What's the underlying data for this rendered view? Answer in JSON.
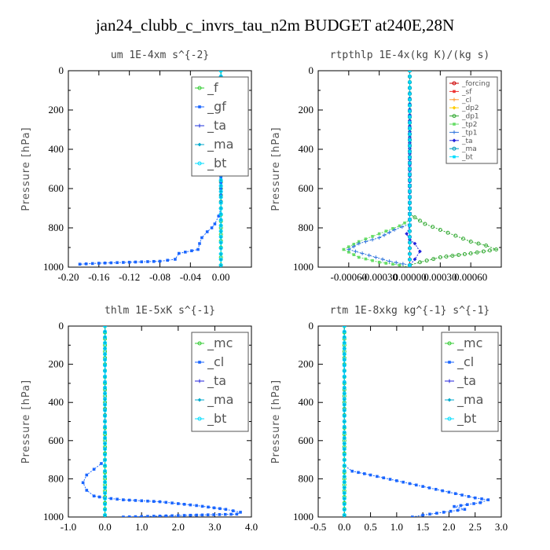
{
  "figure": {
    "title": "jan24_clubb_c_invrs_tau_n2m  BUDGET at240E,28N",
    "ylabel": "Pressure [hPa]"
  },
  "chart_data": [
    {
      "type": "line",
      "title": "um  1E-4xm s^{-2}",
      "ylabel": "Pressure [hPa]",
      "xlim": [
        -0.2,
        0.04
      ],
      "ylim": [
        1000,
        0
      ],
      "xticks": [
        -0.2,
        -0.16,
        -0.12,
        -0.08,
        -0.04,
        0.0
      ],
      "xtick_labels": [
        "-0.20",
        "-0.16",
        "-0.12",
        "-0.08",
        "-0.04",
        "0.00"
      ],
      "yticks": [
        0,
        200,
        400,
        600,
        800,
        1000
      ],
      "legend": {
        "position": "top-right",
        "size": "large"
      },
      "series": [
        {
          "name": "_f",
          "color": "#33cc33",
          "x": [
            0,
            0,
            0,
            0,
            0,
            0,
            0,
            0,
            0,
            0,
            0,
            0
          ],
          "y": [
            0,
            100,
            200,
            300,
            400,
            500,
            600,
            700,
            800,
            900,
            950,
            990
          ]
        },
        {
          "name": "_gf",
          "color": "#1a66ff",
          "x": [
            0,
            0,
            0,
            0,
            0,
            -0.003,
            -0.008,
            -0.012,
            -0.018,
            -0.025,
            -0.028,
            -0.03,
            -0.055,
            -0.06,
            -0.08,
            -0.12,
            -0.16,
            -0.185
          ],
          "y": [
            0,
            200,
            400,
            600,
            700,
            740,
            780,
            800,
            820,
            850,
            880,
            910,
            930,
            960,
            970,
            975,
            980,
            985
          ]
        },
        {
          "name": "_ta",
          "color": "#2233dd",
          "x": [
            0,
            0,
            0
          ],
          "y": [
            0,
            500,
            990
          ]
        },
        {
          "name": "_ma",
          "color": "#00aacc",
          "x": [
            0,
            0,
            0
          ],
          "y": [
            0,
            500,
            990
          ]
        },
        {
          "name": "_bt",
          "color": "#00ddff",
          "x": [
            0,
            0,
            0
          ],
          "y": [
            0,
            500,
            990
          ]
        }
      ]
    },
    {
      "type": "line",
      "title": "rtpthlp  1E-4x(kg K)/(kg s)",
      "ylabel": "Pressure [hPa]",
      "xlim": [
        -0.0009,
        0.0009
      ],
      "ylim": [
        1000,
        0
      ],
      "xticks": [
        -0.0006,
        -0.0003,
        0.0,
        0.0003,
        0.0006
      ],
      "xtick_labels": [
        "-0.00060",
        "-0.00030",
        "0.00000",
        "0.00030",
        "0.00060"
      ],
      "yticks": [
        0,
        200,
        400,
        600,
        800,
        1000
      ],
      "legend": {
        "position": "top-right",
        "size": "small"
      },
      "series": [
        {
          "name": "_forcing",
          "color": "#cc0000",
          "x": [
            0,
            0,
            0
          ],
          "y": [
            0,
            500,
            990
          ]
        },
        {
          "name": "_sf",
          "color": "#ee3333",
          "x": [
            0,
            0,
            0
          ],
          "y": [
            0,
            500,
            990
          ]
        },
        {
          "name": "_cl",
          "color": "#ff9933",
          "x": [
            0,
            0,
            0
          ],
          "y": [
            0,
            500,
            990
          ]
        },
        {
          "name": "_dp2",
          "color": "#ffcc00",
          "x": [
            0,
            0,
            0
          ],
          "y": [
            0,
            500,
            990
          ]
        },
        {
          "name": "_dp1",
          "color": "#33aa33",
          "x": [
            0,
            0,
            0,
            0.00015,
            0.0003,
            0.00045,
            0.0006,
            0.00075,
            0.00085,
            0.0006,
            0.0003,
            0.0001,
            0,
            0
          ],
          "y": [
            0,
            500,
            730,
            780,
            810,
            840,
            870,
            890,
            910,
            930,
            950,
            975,
            990,
            1000
          ]
        },
        {
          "name": "_tp2",
          "color": "#66dd66",
          "x": [
            0,
            0,
            -0.0001,
            -0.0003,
            -0.0005,
            -0.00065,
            -0.0005,
            -0.0003,
            -0.0001,
            0
          ],
          "y": [
            0,
            760,
            790,
            830,
            870,
            910,
            950,
            975,
            990,
            1000
          ]
        },
        {
          "name": "_tp1",
          "color": "#3377dd",
          "x": [
            0,
            0,
            -0.00015,
            -0.0003,
            -0.0005,
            -0.0006,
            -0.0004,
            -0.0002,
            0,
            0
          ],
          "y": [
            0,
            780,
            810,
            850,
            880,
            910,
            940,
            970,
            990,
            1000
          ]
        },
        {
          "name": "_ta",
          "color": "#2222dd",
          "x": [
            0,
            0,
            -3e-05,
            0,
            5e-05,
            0.0001,
            5e-05,
            0
          ],
          "y": [
            0,
            790,
            830,
            860,
            880,
            920,
            960,
            990
          ]
        },
        {
          "name": "_ma",
          "color": "#0099bb",
          "x": [
            0,
            0,
            0
          ],
          "y": [
            0,
            500,
            990
          ]
        },
        {
          "name": "_bt",
          "color": "#00ddff",
          "x": [
            0,
            0,
            0
          ],
          "y": [
            0,
            500,
            990
          ]
        }
      ]
    },
    {
      "type": "line",
      "title": "thlm  1E-5xK s^{-1}",
      "ylabel": "Pressure [hPa]",
      "xlim": [
        -1.0,
        4.0
      ],
      "ylim": [
        1000,
        0
      ],
      "xticks": [
        -1.0,
        0.0,
        1.0,
        2.0,
        3.0,
        4.0
      ],
      "xtick_labels": [
        "-1.0",
        "0.0",
        "1.0",
        "2.0",
        "3.0",
        "4.0"
      ],
      "yticks": [
        0,
        200,
        400,
        600,
        800,
        1000
      ],
      "legend": {
        "position": "top-right",
        "size": "large"
      },
      "series": [
        {
          "name": "_mc",
          "color": "#33cc33",
          "x": [
            0,
            0,
            0,
            0,
            0,
            0
          ],
          "y": [
            0,
            200,
            400,
            600,
            800,
            990
          ]
        },
        {
          "name": "_cl",
          "color": "#1a66ff",
          "x": [
            0,
            0,
            -0.1,
            -0.3,
            -0.5,
            -0.6,
            -0.5,
            -0.3,
            0,
            0.5,
            1.5,
            2.5,
            3.3,
            3.7,
            3.6,
            2.5,
            1.5,
            0.5
          ],
          "y": [
            0,
            700,
            720,
            750,
            780,
            820,
            860,
            890,
            900,
            910,
            920,
            940,
            960,
            975,
            985,
            990,
            995,
            1000
          ]
        },
        {
          "name": "_ta",
          "color": "#2222dd",
          "x": [
            0,
            0,
            0
          ],
          "y": [
            0,
            500,
            990
          ]
        },
        {
          "name": "_ma",
          "color": "#00aacc",
          "x": [
            0,
            0,
            0
          ],
          "y": [
            0,
            500,
            990
          ]
        },
        {
          "name": "_bt",
          "color": "#00ddff",
          "x": [
            0,
            0,
            0
          ],
          "y": [
            0,
            500,
            990
          ]
        }
      ]
    },
    {
      "type": "line",
      "title": "rtm  1E-8xkg kg^{-1} s^{-1}",
      "ylabel": "Pressure [hPa]",
      "xlim": [
        -0.5,
        3.0
      ],
      "ylim": [
        1000,
        0
      ],
      "xticks": [
        -0.5,
        0.0,
        0.5,
        1.0,
        1.5,
        2.0,
        2.5,
        3.0
      ],
      "xtick_labels": [
        "-0.5",
        "0.0",
        "0.5",
        "1.0",
        "1.5",
        "2.0",
        "2.5",
        "3.0"
      ],
      "yticks": [
        0,
        200,
        400,
        600,
        800,
        1000
      ],
      "legend": {
        "position": "top-right",
        "size": "large"
      },
      "series": [
        {
          "name": "_mc",
          "color": "#33cc33",
          "x": [
            0,
            0,
            0,
            0,
            0,
            0
          ],
          "y": [
            0,
            200,
            400,
            600,
            800,
            990
          ]
        },
        {
          "name": "_cl",
          "color": "#1a66ff",
          "x": [
            0,
            0,
            0.15,
            0.5,
            1.0,
            1.5,
            2.0,
            2.5,
            2.75,
            2.6,
            2.1,
            2.3,
            1.9,
            1.5,
            1.3
          ],
          "y": [
            0,
            730,
            760,
            780,
            810,
            840,
            870,
            900,
            910,
            925,
            945,
            960,
            975,
            990,
            1000
          ]
        },
        {
          "name": "_ta",
          "color": "#2222dd",
          "x": [
            0,
            0,
            0
          ],
          "y": [
            0,
            500,
            990
          ]
        },
        {
          "name": "_ma",
          "color": "#00aacc",
          "x": [
            0,
            0,
            0
          ],
          "y": [
            0,
            500,
            990
          ]
        },
        {
          "name": "_bt",
          "color": "#00ddff",
          "x": [
            0,
            0,
            0
          ],
          "y": [
            0,
            500,
            990
          ]
        }
      ]
    }
  ]
}
